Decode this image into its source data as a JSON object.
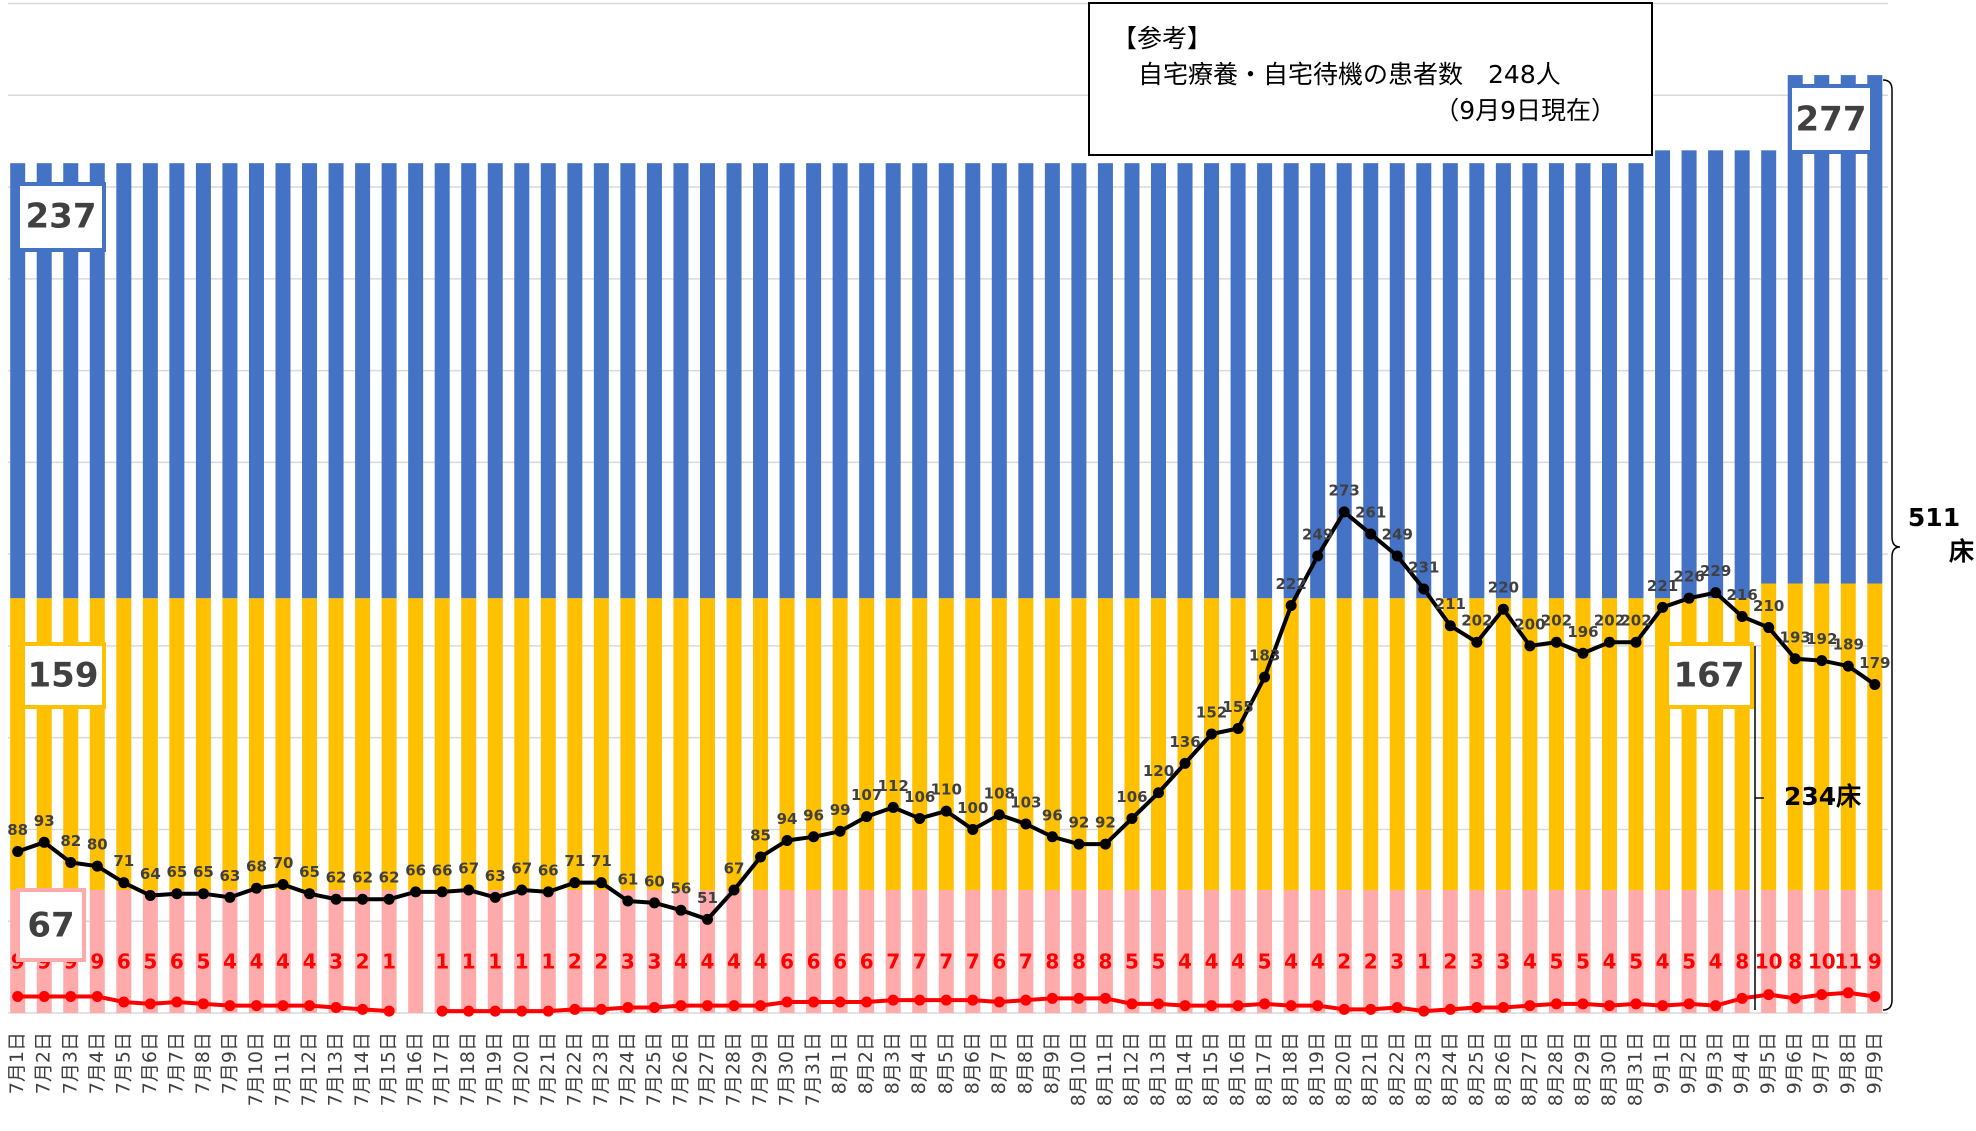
{
  "chart_data": {
    "type": "bar",
    "x": [
      "7月1日",
      "7月2日",
      "7月3日",
      "7月4日",
      "7月5日",
      "7月6日",
      "7月7日",
      "7月8日",
      "7月9日",
      "7月10日",
      "7月11日",
      "7月12日",
      "7月13日",
      "7月14日",
      "7月15日",
      "7月16日",
      "7月17日",
      "7月18日",
      "7月19日",
      "7月20日",
      "7月21日",
      "7月22日",
      "7月23日",
      "7月24日",
      "7月25日",
      "7月26日",
      "7月27日",
      "7月28日",
      "7月29日",
      "7月30日",
      "7月31日",
      "8月1日",
      "8月2日",
      "8月3日",
      "8月4日",
      "8月5日",
      "8月6日",
      "8月7日",
      "8月8日",
      "8月9日",
      "8月10日",
      "8月11日",
      "8月12日",
      "8月13日",
      "8月14日",
      "8月15日",
      "8月16日",
      "8月17日",
      "8月18日",
      "8月19日",
      "8月20日",
      "8月21日",
      "8月22日",
      "8月23日",
      "8月24日",
      "8月25日",
      "8月26日",
      "8月27日",
      "8月28日",
      "8月29日",
      "8月30日",
      "8月31日",
      "9月1日",
      "9月2日",
      "9月3日",
      "9月4日",
      "9月5日",
      "9月6日",
      "9月7日",
      "9月8日",
      "9月9日"
    ],
    "series": [
      {
        "type": "bar",
        "color": "#ffabab",
        "values": [
          67,
          67,
          67,
          67,
          67,
          67,
          67,
          67,
          67,
          67,
          67,
          67,
          67,
          67,
          67,
          67,
          67,
          67,
          67,
          67,
          67,
          67,
          67,
          67,
          67,
          67,
          67,
          67,
          67,
          67,
          67,
          67,
          67,
          67,
          67,
          67,
          67,
          67,
          67,
          67,
          67,
          67,
          67,
          67,
          67,
          67,
          67,
          67,
          67,
          67,
          67,
          67,
          67,
          67,
          67,
          67,
          67,
          67,
          67,
          67,
          67,
          67,
          67,
          67,
          67,
          67,
          67,
          67,
          67,
          67,
          67
        ]
      },
      {
        "type": "bar",
        "color": "#ffc000",
        "values": [
          159,
          159,
          159,
          159,
          159,
          159,
          159,
          159,
          159,
          159,
          159,
          159,
          159,
          159,
          159,
          159,
          159,
          159,
          159,
          159,
          159,
          159,
          159,
          159,
          159,
          159,
          159,
          159,
          159,
          159,
          159,
          159,
          159,
          159,
          159,
          159,
          159,
          159,
          159,
          159,
          159,
          159,
          159,
          159,
          159,
          159,
          159,
          159,
          159,
          159,
          159,
          159,
          159,
          159,
          159,
          159,
          159,
          159,
          159,
          159,
          159,
          159,
          159,
          159,
          159,
          159,
          167,
          167,
          167,
          167,
          167
        ]
      },
      {
        "type": "bar",
        "color": "#4472c4",
        "values": [
          237,
          237,
          237,
          237,
          237,
          237,
          237,
          237,
          237,
          237,
          237,
          237,
          237,
          237,
          237,
          237,
          237,
          237,
          237,
          237,
          237,
          237,
          237,
          237,
          237,
          237,
          237,
          237,
          237,
          237,
          237,
          237,
          237,
          237,
          237,
          237,
          237,
          237,
          237,
          237,
          237,
          237,
          237,
          237,
          237,
          237,
          237,
          237,
          237,
          237,
          237,
          237,
          237,
          237,
          237,
          237,
          237,
          237,
          237,
          237,
          237,
          237,
          244,
          244,
          244,
          244,
          236,
          277,
          277,
          277,
          277
        ]
      },
      {
        "type": "line",
        "color": "#000000",
        "values": [
          88,
          93,
          82,
          80,
          71,
          64,
          65,
          65,
          63,
          68,
          70,
          65,
          62,
          62,
          62,
          66,
          66,
          67,
          63,
          67,
          66,
          71,
          71,
          61,
          60,
          56,
          51,
          67,
          85,
          94,
          96,
          99,
          107,
          112,
          106,
          110,
          100,
          108,
          103,
          96,
          92,
          92,
          106,
          120,
          136,
          152,
          155,
          183,
          222,
          249,
          273,
          261,
          249,
          231,
          211,
          202,
          220,
          200,
          202,
          196,
          202,
          202,
          221,
          226,
          229,
          216,
          210,
          193,
          192,
          189,
          179
        ]
      },
      {
        "type": "line",
        "color": "#ff0000",
        "values": [
          9,
          9,
          9,
          9,
          6,
          5,
          6,
          5,
          4,
          4,
          4,
          4,
          3,
          2,
          1,
          null,
          1,
          1,
          1,
          1,
          1,
          2,
          2,
          3,
          3,
          4,
          4,
          4,
          4,
          6,
          6,
          6,
          6,
          7,
          7,
          7,
          7,
          6,
          7,
          8,
          8,
          8,
          5,
          5,
          4,
          4,
          4,
          5,
          4,
          4,
          2,
          2,
          3,
          1,
          2,
          3,
          3,
          4,
          5,
          5,
          4,
          5,
          4,
          5,
          4,
          8,
          10,
          8,
          10,
          11,
          9
        ]
      }
    ],
    "ylim": [
      0,
      550
    ],
    "yticks": [
      0,
      50,
      100,
      150,
      200,
      250,
      300,
      350,
      400,
      450,
      500,
      550
    ],
    "grid": true,
    "note": [
      "【参考】",
      "自宅療養・自宅待機の患者数　248人",
      "（9月9日現在）"
    ],
    "annotations": [
      "234床",
      "511",
      "床"
    ]
  }
}
